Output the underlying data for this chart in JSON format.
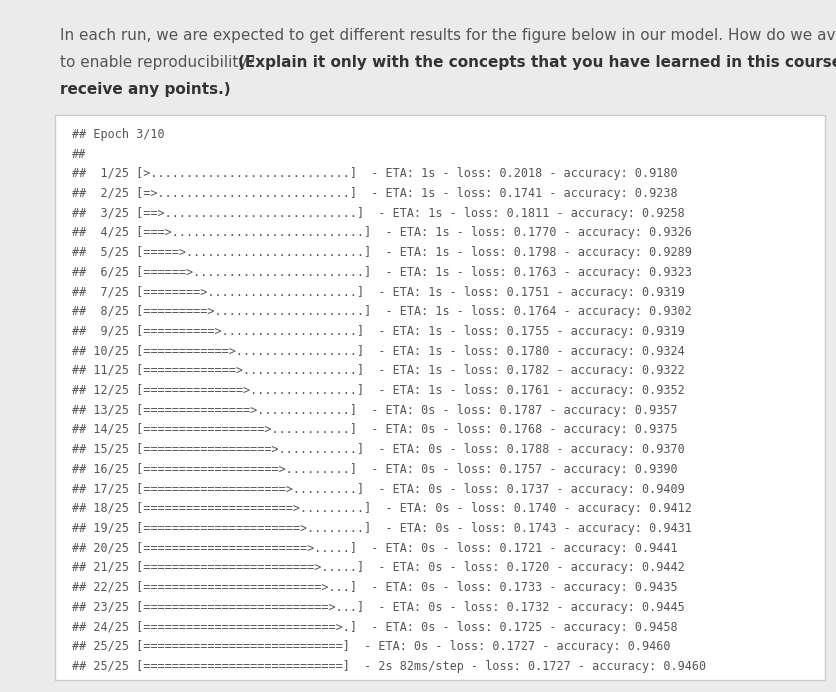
{
  "bg_color": "#ebebeb",
  "box_color": "#ffffff",
  "box_edge_color": "#cccccc",
  "text_color": "#555555",
  "bold_color": "#333333",
  "normal_color": "#555555",
  "header_fontsize": 11.0,
  "code_fontsize": 8.5,
  "line1_normal": "In each run, we are expected to get different results for the figure below in our model. How do we avo",
  "line2_normal": "to enable reproducibility?  ",
  "line2_bold": "(Explain it only with the concepts that you have learned in this course. Oth",
  "line3_bold": "receive any points.)",
  "code_lines": [
    "## Epoch 3/10",
    "##",
    "##  1/25 [>............................]  - ETA: 1s - loss: 0.2018 - accuracy: 0.9180",
    "##  2/25 [=>...........................]  - ETA: 1s - loss: 0.1741 - accuracy: 0.9238",
    "##  3/25 [==>...........................]  - ETA: 1s - loss: 0.1811 - accuracy: 0.9258",
    "##  4/25 [===>...........................]  - ETA: 1s - loss: 0.1770 - accuracy: 0.9326",
    "##  5/25 [=====>.........................]  - ETA: 1s - loss: 0.1798 - accuracy: 0.9289",
    "##  6/25 [======>........................]  - ETA: 1s - loss: 0.1763 - accuracy: 0.9323",
    "##  7/25 [========>.....................]  - ETA: 1s - loss: 0.1751 - accuracy: 0.9319",
    "##  8/25 [=========>.....................]  - ETA: 1s - loss: 0.1764 - accuracy: 0.9302",
    "##  9/25 [==========>...................]  - ETA: 1s - loss: 0.1755 - accuracy: 0.9319",
    "## 10/25 [============>.................]  - ETA: 1s - loss: 0.1780 - accuracy: 0.9324",
    "## 11/25 [=============>................]  - ETA: 1s - loss: 0.1782 - accuracy: 0.9322",
    "## 12/25 [==============>...............]  - ETA: 1s - loss: 0.1761 - accuracy: 0.9352",
    "## 13/25 [===============>.............]  - ETA: 0s - loss: 0.1787 - accuracy: 0.9357",
    "## 14/25 [=================>...........]  - ETA: 0s - loss: 0.1768 - accuracy: 0.9375",
    "## 15/25 [==================>...........]  - ETA: 0s - loss: 0.1788 - accuracy: 0.9370",
    "## 16/25 [===================>.........]  - ETA: 0s - loss: 0.1757 - accuracy: 0.9390",
    "## 17/25 [====================>.........]  - ETA: 0s - loss: 0.1737 - accuracy: 0.9409",
    "## 18/25 [=====================>.........]  - ETA: 0s - loss: 0.1740 - accuracy: 0.9412",
    "## 19/25 [======================>........]  - ETA: 0s - loss: 0.1743 - accuracy: 0.9431",
    "## 20/25 [=======================>.....]  - ETA: 0s - loss: 0.1721 - accuracy: 0.9441",
    "## 21/25 [========================>.....]  - ETA: 0s - loss: 0.1720 - accuracy: 0.9442",
    "## 22/25 [=========================>...]  - ETA: 0s - loss: 0.1733 - accuracy: 0.9435",
    "## 23/25 [==========================>...]  - ETA: 0s - loss: 0.1732 - accuracy: 0.9445",
    "## 24/25 [===========================>.]  - ETA: 0s - loss: 0.1725 - accuracy: 0.9458",
    "## 25/25 [============================]  - ETA: 0s - loss: 0.1727 - accuracy: 0.9460",
    "## 25/25 [============================]  - 2s 82ms/step - loss: 0.1727 - accuracy: 0.9460"
  ],
  "figsize": [
    8.37,
    6.92
  ],
  "dpi": 100
}
